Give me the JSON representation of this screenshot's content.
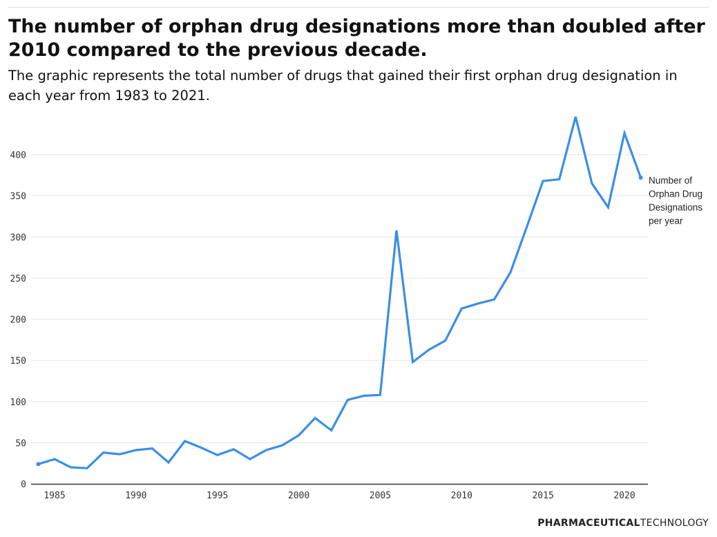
{
  "title": "The number of orphan drug designations more than doubled after 2010 compared to the previous decade.",
  "subtitle": "The graphic represents the total number of drugs that gained their first orphan drug designation in each year from 1983 to 2021.",
  "logo": {
    "part1": "PHARMACEUTICAL",
    "part2": "TECHNOLOGY"
  },
  "colors": {
    "line": "#3a8ee6",
    "grid": "#e6e6e6",
    "axis": "#333333"
  },
  "chart_data": {
    "type": "line",
    "title": "The number of orphan drug designations more than doubled after 2010 compared to the previous decade.",
    "xlabel": "",
    "ylabel": "",
    "x": [
      1984,
      1985,
      1986,
      1987,
      1988,
      1989,
      1990,
      1991,
      1992,
      1993,
      1994,
      1995,
      1996,
      1997,
      1998,
      1999,
      2000,
      2001,
      2002,
      2003,
      2004,
      2005,
      2006,
      2007,
      2008,
      2009,
      2010,
      2011,
      2012,
      2013,
      2014,
      2015,
      2016,
      2017,
      2018,
      2019,
      2020,
      2021
    ],
    "series": [
      {
        "name": "Number of Orphan Drug Designations per year",
        "label_lines": [
          "Number of",
          "Orphan Drug",
          "Designations",
          "per year"
        ],
        "values": [
          24,
          30,
          20,
          19,
          38,
          36,
          41,
          43,
          26,
          52,
          44,
          35,
          42,
          30,
          41,
          47,
          59,
          80,
          65,
          102,
          107,
          108,
          308,
          148,
          163,
          174,
          213,
          219,
          224,
          257,
          312,
          368,
          370,
          446,
          365,
          336,
          426,
          372
        ]
      }
    ],
    "xlim": [
      1983.0,
      2022.4
    ],
    "ylim": [
      0,
      450
    ],
    "xticks": [
      1985,
      1990,
      1995,
      2000,
      2005,
      2010,
      2015,
      2020
    ],
    "yticks": [
      0,
      50,
      100,
      150,
      200,
      250,
      300,
      350,
      400
    ],
    "grid": true,
    "legend": "end-of-line label"
  }
}
